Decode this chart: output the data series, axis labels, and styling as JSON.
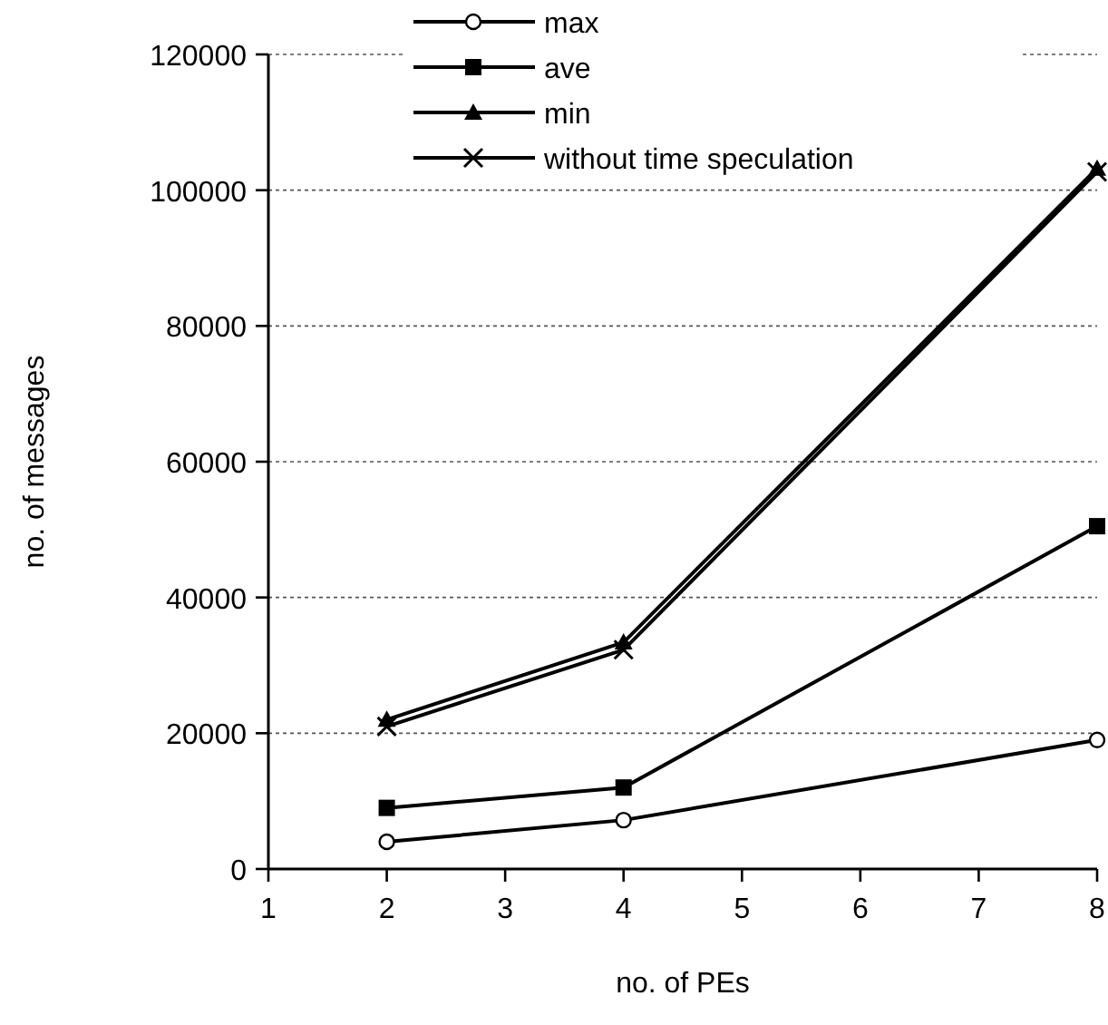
{
  "chart_data": {
    "type": "line",
    "xlabel": "no. of PEs",
    "ylabel": "no. of messages",
    "x": [
      2,
      4,
      8
    ],
    "xlim": [
      1,
      8
    ],
    "xticks": [
      1,
      2,
      3,
      4,
      5,
      6,
      7,
      8
    ],
    "ylim": [
      0,
      120000
    ],
    "yticks": [
      0,
      20000,
      40000,
      60000,
      80000,
      100000,
      120000
    ],
    "grid": "y",
    "legend": "top left",
    "line_style": "solid",
    "series": [
      {
        "name": "max",
        "color": "#000000",
        "marker": "circle",
        "values": [
          4000,
          7200,
          19000
        ]
      },
      {
        "name": "ave",
        "color": "#000000",
        "marker": "square",
        "values": [
          9000,
          12000,
          50500
        ]
      },
      {
        "name": "min",
        "color": "#000000",
        "marker": "triangle",
        "values": [
          22000,
          33400,
          103200
        ]
      },
      {
        "name": "without time speculation",
        "color": "#000000",
        "marker": "cross",
        "values": [
          21000,
          32300,
          102700
        ]
      }
    ]
  }
}
